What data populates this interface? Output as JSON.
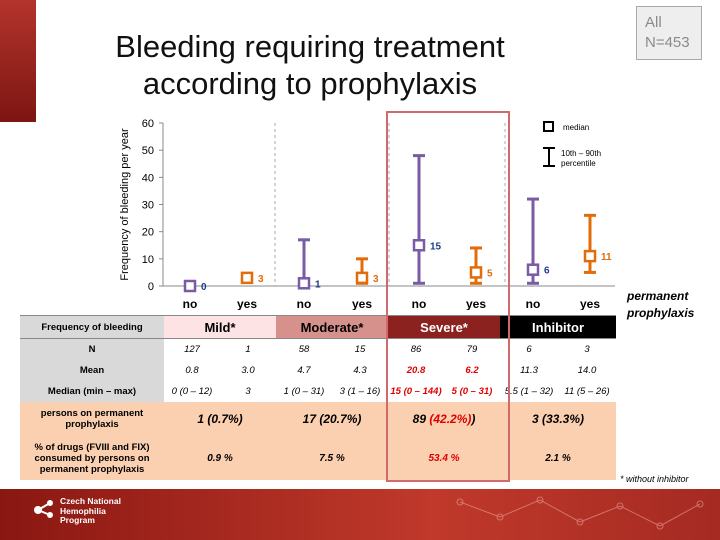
{
  "slide": {
    "title_line1": "Bleeding requiring treatment",
    "title_line2": "according to prophylaxis",
    "all_line1": "All",
    "all_line2": "N=453",
    "permanent_line1": "permanent",
    "permanent_line2": "prophylaxis",
    "footnote": "* without inhibitor",
    "logo_line1": "Czech National",
    "logo_line2": "Hemophilia",
    "logo_line3": "Program"
  },
  "chart_data": {
    "type": "scatter",
    "ylabel": "Frequency of bleeding per year",
    "ylim": [
      0,
      60
    ],
    "yticks": [
      0,
      10,
      20,
      30,
      40,
      50,
      60
    ],
    "categories": [
      "no",
      "yes",
      "no",
      "yes",
      "no",
      "yes",
      "no",
      "yes"
    ],
    "groups": [
      "Mild*",
      "Moderate*",
      "Severe*",
      "Inhibitor"
    ],
    "colors": {
      "no": "#7b5aa6",
      "yes": "#e36c0a",
      "no_label": "#1f3c88",
      "yes_label": "#e36c0a"
    },
    "legend": {
      "median": "median",
      "range_text_1": "10th – 90th",
      "range_text_2": "percentile",
      "position": "top-right"
    },
    "points": [
      {
        "group": "Mild*",
        "prophylaxis": "no",
        "median": 0,
        "p10": null,
        "p90": null,
        "label": "0"
      },
      {
        "group": "Mild*",
        "prophylaxis": "yes",
        "median": 3,
        "p10": null,
        "p90": null,
        "label": "3"
      },
      {
        "group": "Moderate*",
        "prophylaxis": "no",
        "median": 1,
        "p10": 0,
        "p90": 17,
        "label": "1"
      },
      {
        "group": "Moderate*",
        "prophylaxis": "yes",
        "median": 3,
        "p10": 1,
        "p90": 10,
        "label": "3"
      },
      {
        "group": "Severe*",
        "prophylaxis": "no",
        "median": 15,
        "p10": 1,
        "p90": 48,
        "label": "15"
      },
      {
        "group": "Severe*",
        "prophylaxis": "yes",
        "median": 5,
        "p10": 1,
        "p90": 14,
        "label": "5"
      },
      {
        "group": "Inhibitor",
        "prophylaxis": "no",
        "median": 6,
        "p10": 1,
        "p90": 32,
        "label": "6"
      },
      {
        "group": "Inhibitor",
        "prophylaxis": "yes",
        "median": 11,
        "p10": 5,
        "p90": 26,
        "label": "11"
      }
    ]
  },
  "table": {
    "header_label": "Frequency of bleeding",
    "groups": [
      "Mild*",
      "Moderate*",
      "Severe*",
      "Inhibitor"
    ],
    "n_label": "N",
    "n": [
      "127",
      "1",
      "58",
      "15",
      "86",
      "79",
      "6",
      "3"
    ],
    "mean_label": "Mean",
    "mean": [
      "0.8",
      "3.0",
      "4.7",
      "4.3",
      "20.8",
      "6.2",
      "11.3",
      "14.0"
    ],
    "median_label": "Median (min – max)",
    "median": [
      "0 (0 – 12)",
      "3",
      "1 (0 – 31)",
      "3 (1 – 16)",
      "15 (0 – 144)",
      "5 (0 – 31)",
      "5.5 (1 – 32)",
      "11 (5 – 26)"
    ],
    "persons_label_1": "persons on permanent",
    "persons_label_2": "prophylaxis",
    "persons": [
      "1 (0.7%)",
      "17 (20.7%)",
      "89 ",
      "(42.2%)",
      ")",
      "3 (33.3%)"
    ],
    "drugs_label_1": "% of drugs (FVIII and FIX)",
    "drugs_label_2": "consumed by persons on",
    "drugs_label_3": "permanent prophylaxis",
    "drugs": [
      "0.9 %",
      "7.5 %",
      "53.4 %",
      "2.1 %"
    ]
  }
}
